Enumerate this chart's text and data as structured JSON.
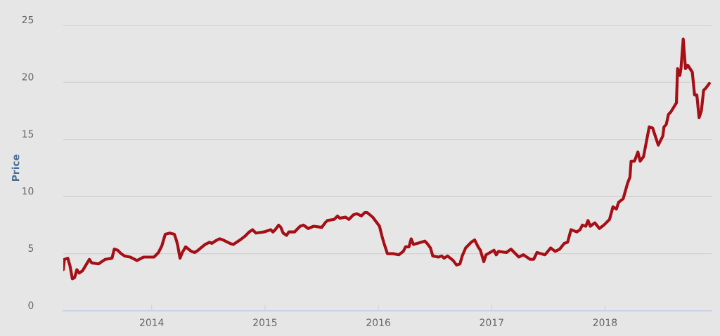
{
  "chart_data": {
    "type": "line",
    "ylabel": "Price",
    "xlim": [
      2013.22,
      2018.94
    ],
    "xticks": [
      2014,
      2015,
      2016,
      2017,
      2018
    ],
    "ylim": [
      0,
      25
    ],
    "yticks": [
      0,
      5,
      10,
      15,
      20,
      25
    ],
    "grid": "y",
    "marker": "none",
    "line_style": "solid",
    "series": [
      {
        "color": "#a50f15",
        "x": [
          2013.22,
          2013.23,
          2013.26,
          2013.28,
          2013.3,
          2013.32,
          2013.34,
          2013.36,
          2013.39,
          2013.42,
          2013.45,
          2013.47,
          2013.53,
          2013.59,
          2013.65,
          2013.67,
          2013.7,
          2013.73,
          2013.76,
          2013.81,
          2013.87,
          2013.93,
          2013.99,
          2014.02,
          2014.06,
          2014.09,
          2014.12,
          2014.16,
          2014.2,
          2014.22,
          2014.23,
          2014.25,
          2014.27,
          2014.3,
          2014.35,
          2014.38,
          2014.41,
          2014.47,
          2014.51,
          2014.53,
          2014.56,
          2014.6,
          2014.63,
          2014.69,
          2014.72,
          2014.78,
          2014.82,
          2014.86,
          2014.89,
          2014.92,
          2014.99,
          2015.05,
          2015.07,
          2015.09,
          2015.12,
          2015.14,
          2015.16,
          2015.19,
          2015.21,
          2015.26,
          2015.29,
          2015.31,
          2015.34,
          2015.38,
          2015.43,
          2015.5,
          2015.53,
          2015.55,
          2015.61,
          2015.64,
          2015.66,
          2015.71,
          2015.74,
          2015.78,
          2015.81,
          2015.85,
          2015.88,
          2015.9,
          2015.95,
          2015.98,
          2016.01,
          2016.03,
          2016.05,
          2016.08,
          2016.13,
          2016.18,
          2016.22,
          2016.24,
          2016.27,
          2016.29,
          2016.31,
          2016.38,
          2016.41,
          2016.43,
          2016.46,
          2016.48,
          2016.53,
          2016.56,
          2016.58,
          2016.61,
          2016.66,
          2016.69,
          2016.72,
          2016.74,
          2016.77,
          2016.82,
          2016.85,
          2016.88,
          2016.9,
          2016.93,
          2016.95,
          2017.02,
          2017.04,
          2017.06,
          2017.13,
          2017.17,
          2017.2,
          2017.24,
          2017.28,
          2017.34,
          2017.37,
          2017.4,
          2017.47,
          2017.52,
          2017.56,
          2017.6,
          2017.64,
          2017.67,
          2017.7,
          2017.75,
          2017.78,
          2017.8,
          2017.83,
          2017.85,
          2017.87,
          2017.91,
          2017.95,
          2017.99,
          2018.04,
          2018.07,
          2018.1,
          2018.12,
          2018.16,
          2018.2,
          2018.22,
          2018.23,
          2018.26,
          2018.29,
          2018.31,
          2018.34,
          2018.39,
          2018.42,
          2018.47,
          2018.51,
          2018.52,
          2018.54,
          2018.56,
          2018.58,
          2018.63,
          2018.64,
          2018.66,
          2018.67,
          2018.69,
          2018.71,
          2018.73,
          2018.77,
          2018.79,
          2018.81,
          2018.83,
          2018.85,
          2018.87,
          2018.89,
          2018.92
        ],
        "values": [
          3.6,
          4.5,
          4.6,
          3.9,
          2.8,
          2.9,
          3.6,
          3.3,
          3.5,
          4.0,
          4.5,
          4.2,
          4.1,
          4.5,
          4.6,
          5.4,
          5.3,
          5.0,
          4.8,
          4.7,
          4.4,
          4.7,
          4.7,
          4.7,
          5.1,
          5.7,
          6.7,
          6.8,
          6.7,
          6.1,
          5.7,
          4.6,
          5.1,
          5.6,
          5.2,
          5.1,
          5.3,
          5.8,
          6.0,
          5.9,
          6.1,
          6.3,
          6.2,
          5.9,
          5.8,
          6.2,
          6.5,
          6.9,
          7.1,
          6.8,
          6.9,
          7.1,
          6.9,
          7.1,
          7.5,
          7.3,
          6.8,
          6.6,
          6.9,
          6.9,
          7.2,
          7.4,
          7.5,
          7.2,
          7.4,
          7.3,
          7.7,
          7.9,
          8.0,
          8.3,
          8.1,
          8.2,
          8.0,
          8.4,
          8.5,
          8.3,
          8.6,
          8.6,
          8.2,
          7.8,
          7.4,
          6.6,
          5.9,
          5.0,
          5.0,
          4.9,
          5.2,
          5.6,
          5.6,
          6.3,
          5.8,
          6.0,
          6.1,
          5.9,
          5.5,
          4.8,
          4.7,
          4.8,
          4.6,
          4.8,
          4.4,
          4.0,
          4.1,
          4.8,
          5.5,
          6.0,
          6.2,
          5.6,
          5.3,
          4.3,
          4.9,
          5.3,
          4.9,
          5.2,
          5.1,
          5.4,
          5.1,
          4.7,
          4.9,
          4.5,
          4.5,
          5.1,
          4.9,
          5.5,
          5.2,
          5.4,
          5.9,
          6.0,
          7.1,
          6.9,
          7.1,
          7.5,
          7.4,
          7.9,
          7.4,
          7.7,
          7.2,
          7.5,
          8.0,
          9.1,
          8.9,
          9.5,
          9.8,
          11.2,
          11.7,
          13.1,
          13.1,
          13.9,
          13.1,
          13.5,
          16.1,
          16.0,
          14.5,
          15.3,
          16.1,
          16.3,
          17.2,
          17.4,
          18.2,
          21.2,
          20.6,
          21.2,
          23.8,
          21.2,
          21.5,
          20.9,
          18.9,
          18.9,
          16.9,
          17.5,
          19.3,
          19.5,
          19.9
        ]
      }
    ]
  }
}
